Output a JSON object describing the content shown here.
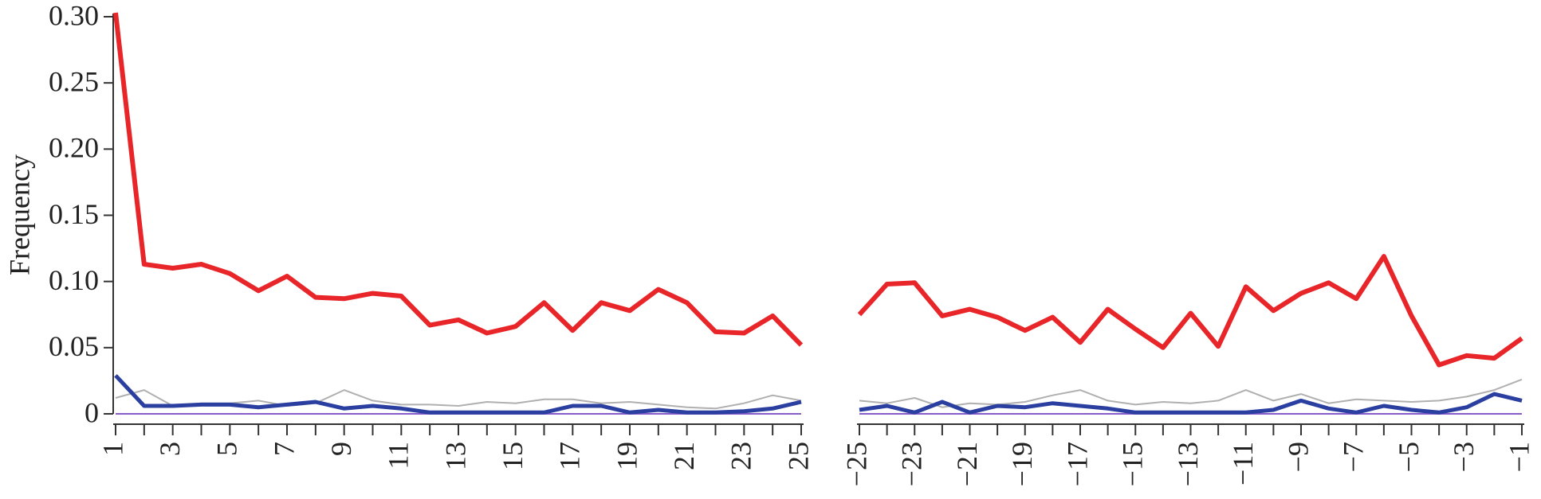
{
  "chart_data": [
    {
      "type": "line",
      "ylabel": "Frequency",
      "x": [
        1,
        2,
        3,
        4,
        5,
        6,
        7,
        8,
        9,
        10,
        11,
        12,
        13,
        14,
        15,
        16,
        17,
        18,
        19,
        20,
        21,
        22,
        23,
        24,
        25
      ],
      "xlim": [
        1,
        25
      ],
      "xticks": [
        1,
        3,
        5,
        7,
        9,
        11,
        13,
        15,
        17,
        19,
        21,
        23,
        25
      ],
      "xminorticks": [
        2,
        4,
        6,
        8,
        10,
        12,
        14,
        16,
        18,
        20,
        22,
        24
      ],
      "ylim": [
        0,
        0.3
      ],
      "yticks": [
        0,
        0.05,
        {
          "value": 0.1,
          "label": "0.10"
        },
        0.15,
        {
          "value": 0.2,
          "label": "0.20"
        },
        0.25,
        {
          "value": 0.3,
          "label": "0.30"
        }
      ],
      "series": [
        {
          "color": "#b0b0b0",
          "values": [
            0.012,
            0.018,
            0.006,
            0.008,
            0.008,
            0.01,
            0.006,
            0.008,
            0.018,
            0.01,
            0.007,
            0.007,
            0.006,
            0.009,
            0.008,
            0.011,
            0.011,
            0.008,
            0.009,
            0.007,
            0.005,
            0.004,
            0.008,
            0.014,
            0.01
          ]
        },
        {
          "color": "#8a5cc8",
          "values": [
            0,
            0,
            0,
            0,
            0,
            0,
            0,
            0,
            0,
            0,
            0,
            0,
            0,
            0,
            0,
            0,
            0,
            0,
            0,
            0,
            0,
            0,
            0,
            0,
            0
          ]
        },
        {
          "color": "#e8262a",
          "values": [
            0.303,
            0.113,
            0.11,
            0.113,
            0.106,
            0.093,
            0.104,
            0.088,
            0.087,
            0.091,
            0.089,
            0.067,
            0.071,
            0.061,
            0.066,
            0.084,
            0.063,
            0.084,
            0.078,
            0.094,
            0.084,
            0.062,
            0.061,
            0.074,
            0.052
          ]
        },
        {
          "color": "#2a3fa0",
          "values": [
            0.029,
            0.006,
            0.006,
            0.007,
            0.007,
            0.005,
            0.007,
            0.009,
            0.004,
            0.006,
            0.004,
            0.001,
            0.001,
            0.001,
            0.001,
            0.001,
            0.006,
            0.006,
            0.001,
            0.003,
            0.001,
            0.001,
            0.002,
            0.004,
            0.009
          ]
        }
      ]
    },
    {
      "type": "line",
      "x": [
        -25,
        -24,
        -23,
        -22,
        -21,
        -20,
        -19,
        -18,
        -17,
        -16,
        -15,
        -14,
        -13,
        -12,
        -11,
        -10,
        -9,
        -8,
        -7,
        -6,
        -5,
        -4,
        -3,
        -2,
        -1
      ],
      "xlim": [
        -25,
        -1
      ],
      "xticks": [
        {
          "value": -25,
          "label": "−25"
        },
        {
          "value": -23,
          "label": "−23"
        },
        {
          "value": -21,
          "label": "−21"
        },
        {
          "value": -19,
          "label": "−19"
        },
        {
          "value": -17,
          "label": "−17"
        },
        {
          "value": -15,
          "label": "−15"
        },
        {
          "value": -13,
          "label": "−13"
        },
        {
          "value": -11,
          "label": "−11"
        },
        {
          "value": -9,
          "label": "−9"
        },
        {
          "value": -7,
          "label": "−7"
        },
        {
          "value": -5,
          "label": "−5"
        },
        {
          "value": -3,
          "label": "−3"
        },
        {
          "value": -1,
          "label": "−1"
        }
      ],
      "xminorticks": [
        -24,
        -22,
        -20,
        -18,
        -16,
        -14,
        -12,
        -10,
        -8,
        -6,
        -4,
        -2
      ],
      "ylim": [
        0,
        0.3
      ],
      "series": [
        {
          "color": "#b0b0b0",
          "values": [
            0.01,
            0.008,
            0.012,
            0.005,
            0.008,
            0.007,
            0.009,
            0.014,
            0.018,
            0.01,
            0.007,
            0.009,
            0.008,
            0.01,
            0.018,
            0.01,
            0.015,
            0.008,
            0.011,
            0.01,
            0.009,
            0.01,
            0.013,
            0.018,
            0.026
          ]
        },
        {
          "color": "#8a5cc8",
          "values": [
            0,
            0,
            0,
            0,
            0,
            0,
            0,
            0,
            0,
            0,
            0,
            0,
            0,
            0,
            0,
            0,
            0,
            0,
            0,
            0,
            0,
            0,
            0,
            0,
            0
          ]
        },
        {
          "color": "#e8262a",
          "values": [
            0.075,
            0.098,
            0.099,
            0.074,
            0.079,
            0.073,
            0.063,
            0.073,
            0.054,
            0.079,
            0.064,
            0.05,
            0.076,
            0.051,
            0.096,
            0.078,
            0.091,
            0.099,
            0.087,
            0.119,
            0.074,
            0.037,
            0.044,
            0.042,
            0.057
          ]
        },
        {
          "color": "#2a3fa0",
          "values": [
            0.003,
            0.006,
            0.001,
            0.009,
            0.001,
            0.006,
            0.005,
            0.008,
            0.006,
            0.004,
            0.001,
            0.001,
            0.001,
            0.001,
            0.001,
            0.003,
            0.01,
            0.004,
            0.001,
            0.006,
            0.003,
            0.001,
            0.005,
            0.015,
            0.01
          ]
        }
      ]
    }
  ]
}
